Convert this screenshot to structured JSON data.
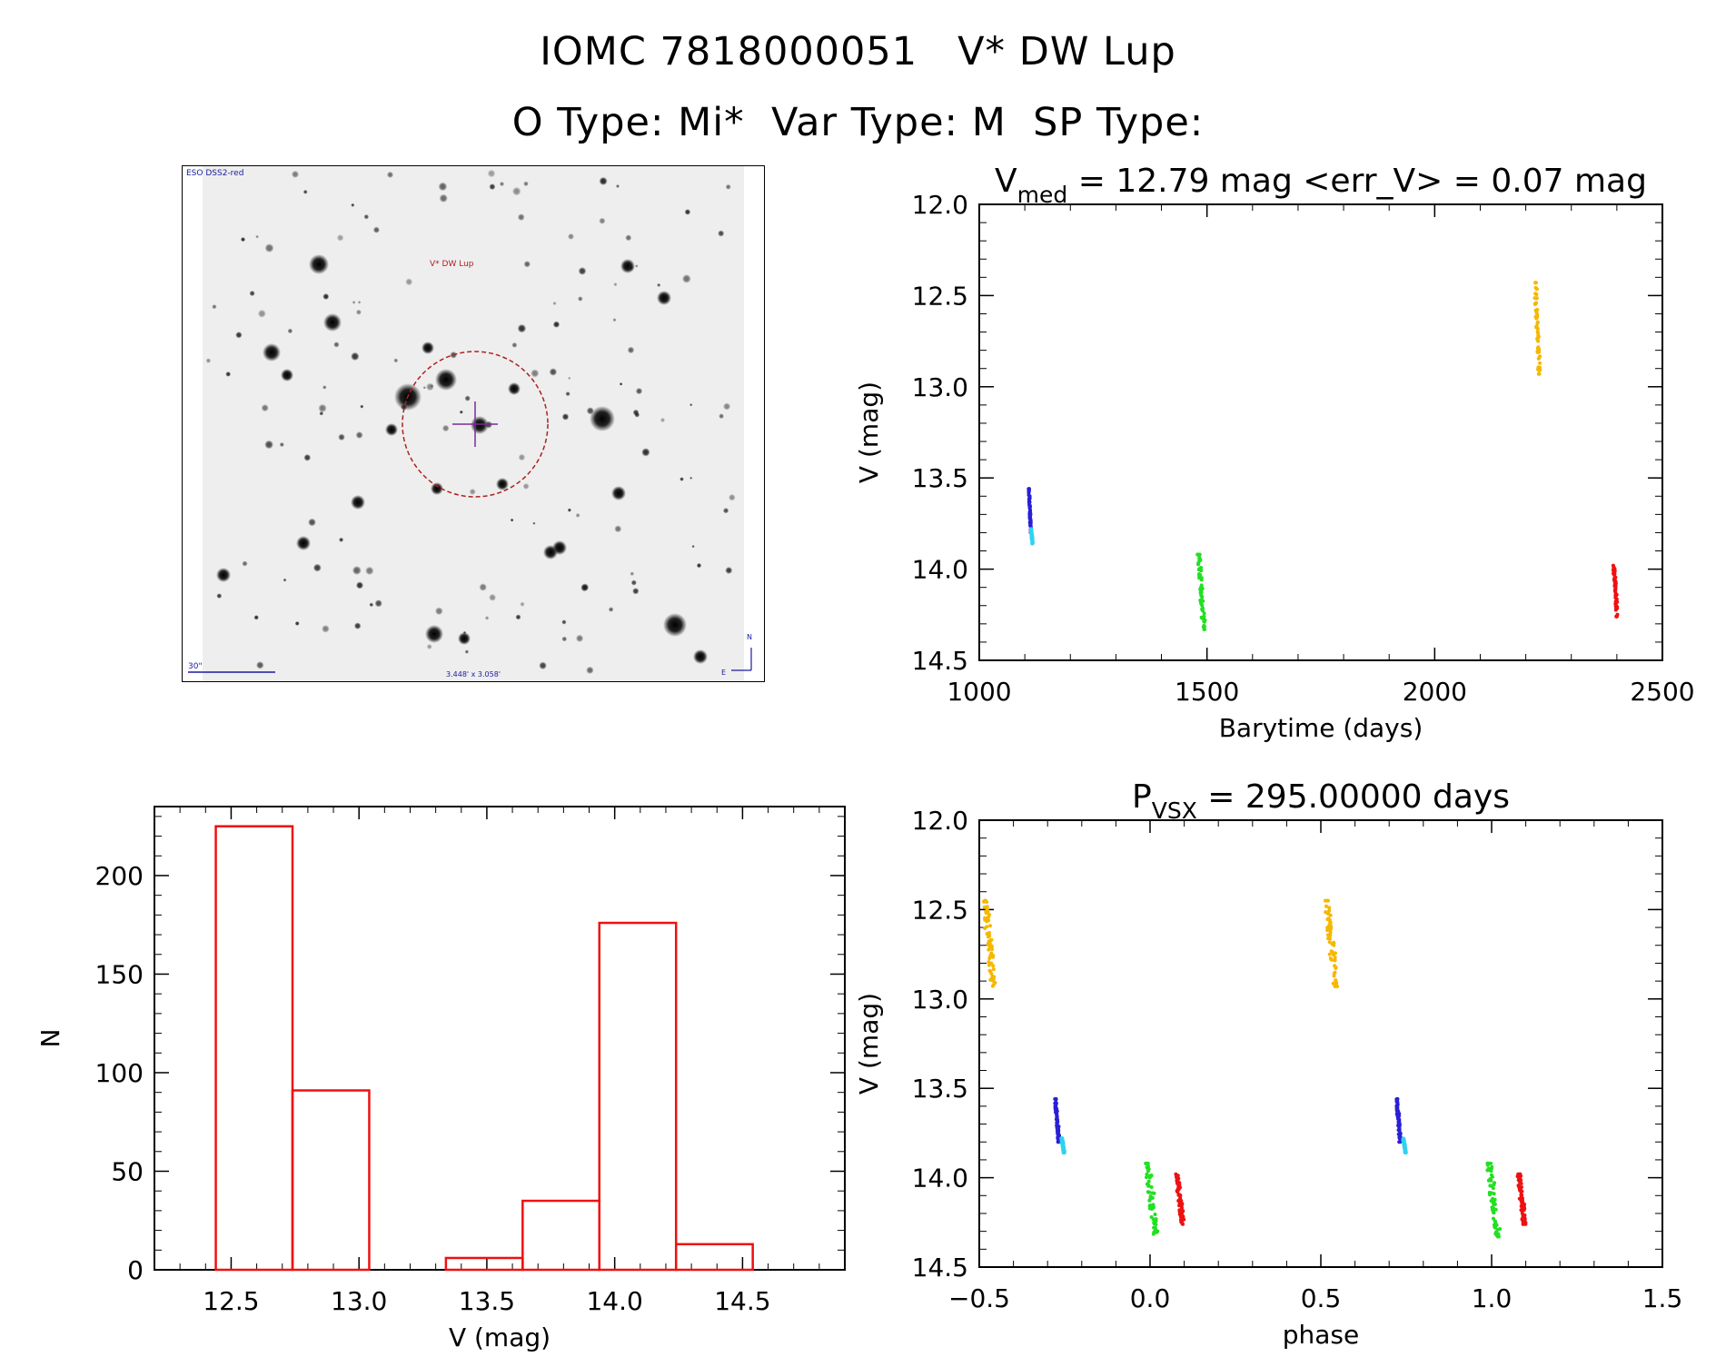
{
  "header": {
    "title_line1": "IOMC 7818000051   V* DW Lup",
    "title_line2": "O Type: Mi*  Var Type: M  SP Type:"
  },
  "finder": {
    "survey_label": "ESO DSS2-red",
    "target_label": "V* DW Lup",
    "scale_label": "30\"",
    "fov_label": "3.448' x 3.058'",
    "north_label": "N",
    "east_label": "E"
  },
  "chart_data": [
    {
      "id": "lightcurve",
      "type": "scatter",
      "title_main": "V",
      "title_sub": "med",
      "title_rest": " = 12.79 mag <err_V> = 0.07 mag",
      "xlabel": "Barytime (days)",
      "ylabel": "V (mag)",
      "xlim": [
        1000,
        2500
      ],
      "ylim": [
        14.5,
        12.0
      ],
      "y_inverted": true,
      "xticks": [
        1000,
        1500,
        2000,
        2500
      ],
      "yticks": [
        12.0,
        12.5,
        13.0,
        13.5,
        14.0,
        14.5
      ],
      "series": [
        {
          "color": "#2a1fd6",
          "x_range": [
            1108,
            1114
          ],
          "y_range": [
            13.56,
            13.8
          ]
        },
        {
          "color": "#2ed3ef",
          "x_range": [
            1113,
            1118
          ],
          "y_range": [
            13.78,
            13.86
          ]
        },
        {
          "color": "#22e022",
          "x_range": [
            1479,
            1496
          ],
          "y_range": [
            13.92,
            14.33
          ]
        },
        {
          "color": "#f5b800",
          "x_range": [
            2219,
            2232
          ],
          "y_range": [
            12.43,
            12.93
          ]
        },
        {
          "color": "#ee1111",
          "x_range": [
            2392,
            2402
          ],
          "y_range": [
            13.98,
            14.26
          ]
        }
      ]
    },
    {
      "id": "histogram",
      "type": "bar",
      "xlabel": "V (mag)",
      "ylabel": "N",
      "xlim": [
        12.2,
        14.9
      ],
      "ylim": [
        0,
        235
      ],
      "xticks": [
        12.5,
        13.0,
        13.5,
        14.0,
        14.5
      ],
      "yticks": [
        0,
        50,
        100,
        150,
        200
      ],
      "bin_edges": [
        12.44,
        12.74,
        13.04,
        13.34,
        13.64,
        13.94,
        14.24,
        14.54
      ],
      "counts": [
        225,
        91,
        0,
        6,
        35,
        176,
        13
      ],
      "color": "#ee1111"
    },
    {
      "id": "phased",
      "type": "scatter",
      "title_main": "P",
      "title_sub": "VSX",
      "title_rest": " = 295.00000 days",
      "xlabel": "phase",
      "ylabel": "V (mag)",
      "xlim": [
        -0.5,
        1.5
      ],
      "ylim": [
        14.5,
        12.0
      ],
      "y_inverted": true,
      "xticks": [
        -0.5,
        0.0,
        0.5,
        1.0,
        1.5
      ],
      "xtick_labels": [
        "−0.5",
        "0.0",
        "0.5",
        "1.0",
        "1.5"
      ],
      "yticks": [
        12.0,
        12.5,
        13.0,
        13.5,
        14.0,
        14.5
      ],
      "series": [
        {
          "color": "#f5b800",
          "x_range": [
            -0.49,
            -0.45
          ],
          "y_range": [
            12.45,
            12.93
          ]
        },
        {
          "color": "#f5b800",
          "x_range": [
            0.51,
            0.55
          ],
          "y_range": [
            12.45,
            12.93
          ]
        },
        {
          "color": "#2a1fd6",
          "x_range": [
            -0.28,
            -0.265
          ],
          "y_range": [
            13.56,
            13.8
          ]
        },
        {
          "color": "#2ed3ef",
          "x_range": [
            -0.26,
            -0.25
          ],
          "y_range": [
            13.78,
            13.86
          ]
        },
        {
          "color": "#2a1fd6",
          "x_range": [
            0.72,
            0.735
          ],
          "y_range": [
            13.56,
            13.8
          ]
        },
        {
          "color": "#2ed3ef",
          "x_range": [
            0.74,
            0.75
          ],
          "y_range": [
            13.78,
            13.86
          ]
        },
        {
          "color": "#22e022",
          "x_range": [
            -0.015,
            0.025
          ],
          "y_range": [
            13.92,
            14.33
          ]
        },
        {
          "color": "#22e022",
          "x_range": [
            0.985,
            1.025
          ],
          "y_range": [
            13.92,
            14.33
          ]
        },
        {
          "color": "#ee1111",
          "x_range": [
            0.075,
            0.1
          ],
          "y_range": [
            13.98,
            14.26
          ]
        },
        {
          "color": "#ee1111",
          "x_range": [
            1.075,
            1.1
          ],
          "y_range": [
            13.98,
            14.26
          ]
        }
      ]
    }
  ]
}
